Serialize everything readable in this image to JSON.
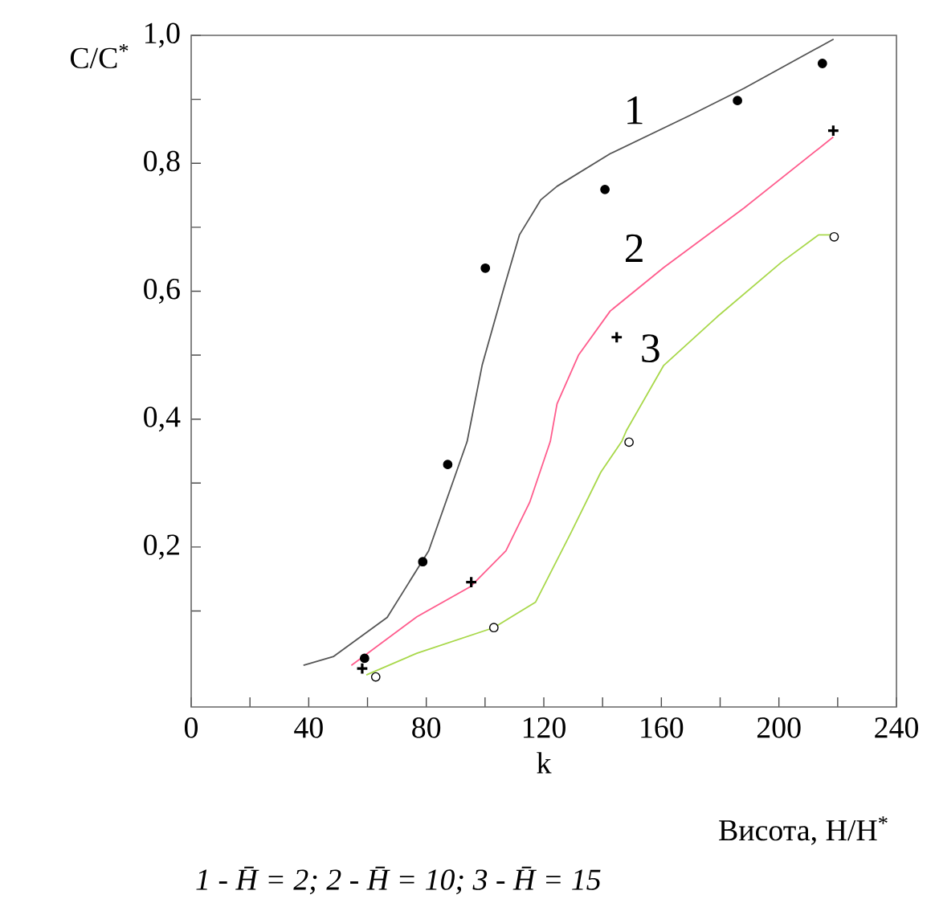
{
  "chart_data": {
    "type": "line",
    "xlabel": "k",
    "ylabel": "C/C$^{*}$",
    "xlim": [
      0,
      240
    ],
    "ylim": [
      -0.05,
      1.0
    ],
    "xticks": [
      0,
      {
        "value": 20,
        "label": null
      },
      40,
      {
        "value": 60,
        "label": null
      },
      80,
      {
        "value": 100,
        "label": null
      },
      120,
      {
        "value": 140,
        "label": null
      },
      160,
      {
        "value": 180,
        "label": null
      },
      200,
      {
        "value": 220,
        "label": null
      },
      240
    ],
    "yticks": [
      {
        "value": 0.1,
        "label": null
      },
      {
        "value": 0.2,
        "label": "0,2"
      },
      {
        "value": 0.3,
        "label": null
      },
      {
        "value": 0.4,
        "label": "0,4"
      },
      {
        "value": 0.5,
        "label": null
      },
      {
        "value": 0.6,
        "label": "0,6"
      },
      {
        "value": 0.7,
        "label": null
      },
      {
        "value": 0.8,
        "label": "0,8"
      },
      {
        "value": 0.9,
        "label": null
      },
      {
        "value": 1.0,
        "label": "1,0"
      }
    ],
    "grid": false,
    "legend": false,
    "series": [
      {
        "name": "1",
        "color": "#555555",
        "x": [
          38.2,
          48.5,
          66.7,
          80.8,
          93.9,
          99.0,
          106.3,
          111.7,
          119.0,
          124.5,
          142.6,
          169.8,
          188.1,
          218.6
        ],
        "values": [
          0.015,
          0.029,
          0.09,
          0.194,
          0.365,
          0.484,
          0.603,
          0.688,
          0.743,
          0.764,
          0.815,
          0.875,
          0.917,
          0.994
        ]
      },
      {
        "name": "2",
        "color": "#ff5c8d",
        "x": [
          54.5,
          76.8,
          95.0,
          107.1,
          115.2,
          122.2,
          124.5,
          131.8,
          142.6,
          160.8,
          188.1,
          218.5
        ],
        "values": [
          0.015,
          0.091,
          0.138,
          0.194,
          0.27,
          0.365,
          0.424,
          0.5,
          0.569,
          0.637,
          0.73,
          0.841
        ]
      },
      {
        "name": "3",
        "color": "#a8d84a",
        "x": [
          59.6,
          76.8,
          103.0,
          117.2,
          129.3,
          139.4,
          146.5,
          148.1,
          160.8,
          179.0,
          200.8,
          213.5,
          218.6
        ],
        "values": [
          0.0,
          0.034,
          0.074,
          0.114,
          0.223,
          0.317,
          0.365,
          0.382,
          0.484,
          0.56,
          0.645,
          0.688,
          0.688
        ]
      },
      {
        "type": "scatter",
        "color": "#000000",
        "marker": "circle",
        "x": [
          59.0,
          78.8,
          87.3,
          100.1,
          140.8,
          185.9,
          214.8
        ],
        "values": [
          0.026,
          0.177,
          0.329,
          0.636,
          0.759,
          0.898,
          0.956
        ]
      },
      {
        "type": "scatter",
        "color": "#000000",
        "marker": "cross",
        "x": [
          58.2,
          95.3,
          144.8,
          218.5
        ],
        "values": [
          0.01,
          0.145,
          0.528,
          0.851
        ]
      },
      {
        "type": "scatter",
        "color": "#ffffff",
        "marker": "circle",
        "x": [
          62.8,
          103.0,
          149.0,
          218.8
        ],
        "values": [
          -0.003,
          0.074,
          0.364,
          0.685
        ]
      }
    ],
    "annotations": [
      "Висота, H/H$^{*}$",
      "1 - H̄ = 2;  2 - H̄ = 10;  3 - H̄ = 15"
    ]
  }
}
